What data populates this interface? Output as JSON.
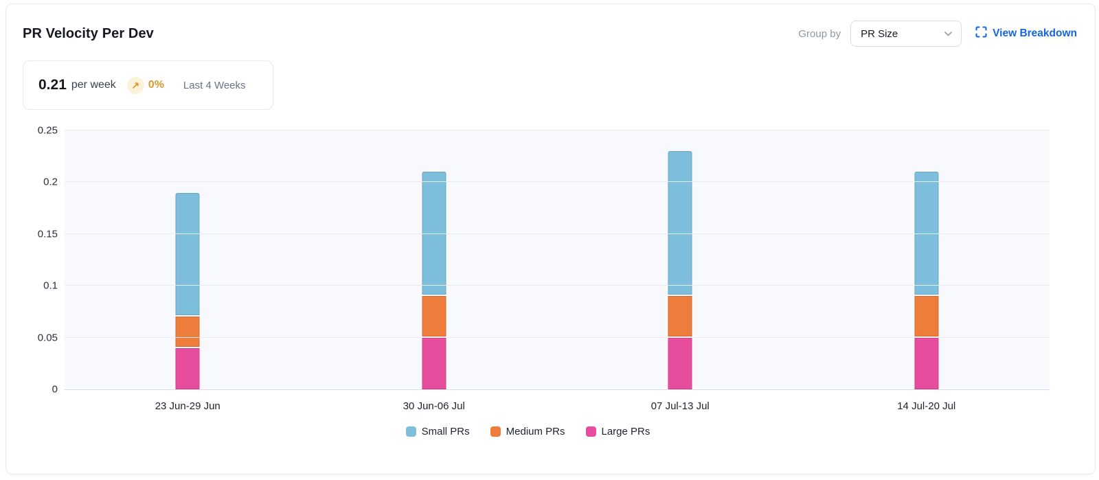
{
  "header": {
    "title": "PR Velocity Per Dev",
    "group_by_label": "Group by",
    "group_by_value": "PR Size",
    "view_breakdown": "View Breakdown"
  },
  "stat_card": {
    "value": "0.21",
    "unit": "per week",
    "trend_arrow": "↗",
    "trend_percent": "0%",
    "period": "Last 4 Weeks"
  },
  "chart_data": {
    "type": "bar",
    "stacked": true,
    "title": "PR Velocity Per Dev",
    "categories": [
      "23 Jun-29 Jun",
      "30 Jun-06 Jul",
      "07 Jul-13 Jul",
      "14 Jul-20 Jul"
    ],
    "series": [
      {
        "name": "Small PRs",
        "color": "#7CBEDB",
        "values": [
          0.12,
          0.12,
          0.14,
          0.12
        ]
      },
      {
        "name": "Medium PRs",
        "color": "#EE7C3A",
        "values": [
          0.03,
          0.04,
          0.04,
          0.04
        ]
      },
      {
        "name": "Large PRs",
        "color": "#E84D9D",
        "values": [
          0.04,
          0.05,
          0.05,
          0.05
        ]
      }
    ],
    "stack_order_bottom_to_top": [
      "Large PRs",
      "Medium PRs",
      "Small PRs"
    ],
    "totals": [
      0.19,
      0.21,
      0.23,
      0.21
    ],
    "xlabel": "",
    "ylabel": "",
    "ylim": [
      0,
      0.25
    ],
    "yticks": [
      0,
      0.05,
      0.1,
      0.15,
      0.2,
      0.25
    ],
    "ytick_labels": [
      "0",
      "0.05",
      "0.1",
      "0.15",
      "0.2",
      "0.25"
    ],
    "grid": true,
    "legend_position": "bottom"
  },
  "colors": {
    "accent_blue": "#1565E0",
    "trend_amber": "#D9982C",
    "trend_amber_bg": "#FBF2D9",
    "plot_bg": "#F8F9FC",
    "gridline": "#E9EBF1",
    "baseline": "#D9DCE3",
    "card_border": "#E6E9F0"
  }
}
